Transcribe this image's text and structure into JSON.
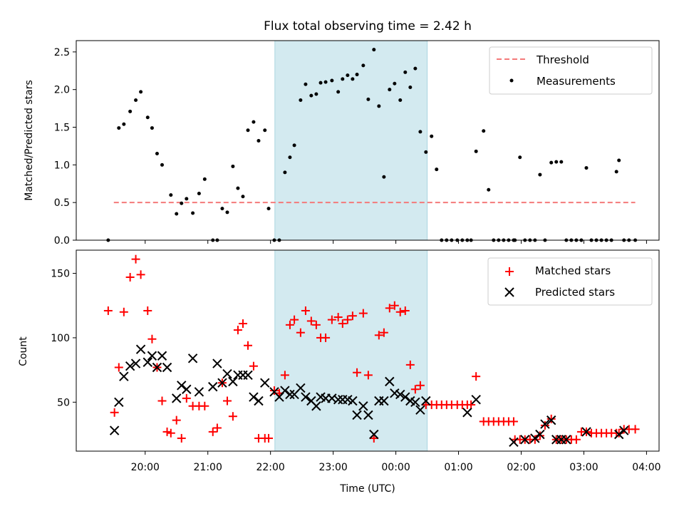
{
  "chart_data": [
    {
      "type": "scatter",
      "title": "Flux total observing time = 2.42 h",
      "xlabel": "",
      "ylabel": "Matched/Predicted stars",
      "xlim_hours": [
        18.9,
        28.2
      ],
      "ylim": [
        0,
        2.65
      ],
      "yticks": [
        0.0,
        0.5,
        1.0,
        1.5,
        2.0,
        2.5
      ],
      "ytick_labels": [
        "0.0",
        "0.5",
        "1.0",
        "1.5",
        "2.0",
        "2.5"
      ],
      "highlight_span_hours": [
        22.07,
        24.5
      ],
      "highlight_color": "#d3eaf0",
      "threshold": {
        "name": "Threshold",
        "value": 0.5,
        "x_range_hours": [
          19.5,
          27.82
        ],
        "color": "#f47a7a"
      },
      "legend": {
        "position": "upper right",
        "entries": [
          "Threshold",
          "Measurements"
        ]
      },
      "series": [
        {
          "name": "Measurements",
          "color": "#000000",
          "x": [
            19.41,
            19.58,
            19.66,
            19.76,
            19.85,
            19.93,
            20.04,
            20.11,
            20.19,
            20.27,
            20.41,
            20.5,
            20.58,
            20.66,
            20.76,
            20.86,
            20.95,
            21.08,
            21.15,
            21.23,
            21.31,
            21.4,
            21.48,
            21.56,
            21.64,
            21.73,
            21.81,
            21.91,
            21.97,
            22.06,
            22.14,
            22.23,
            22.31,
            22.38,
            22.48,
            22.56,
            22.65,
            22.73,
            22.8,
            22.88,
            22.98,
            23.08,
            23.15,
            23.23,
            23.31,
            23.38,
            23.48,
            23.56,
            23.65,
            23.73,
            23.81,
            23.9,
            23.98,
            24.07,
            24.15,
            24.23,
            24.31,
            24.39,
            24.48,
            24.57,
            24.65,
            24.73,
            24.81,
            24.89,
            24.98,
            25.06,
            25.14,
            25.2,
            25.28,
            25.4,
            25.48,
            25.56,
            25.64,
            25.72,
            25.8,
            25.88,
            25.9,
            25.98,
            26.06,
            26.14,
            26.22,
            26.3,
            26.38,
            26.48,
            26.56,
            26.64,
            26.72,
            26.8,
            26.88,
            26.96,
            27.04,
            27.12,
            27.2,
            27.28,
            27.36,
            27.44,
            27.52,
            27.56,
            27.64,
            27.72,
            27.82
          ],
          "y": [
            0.0,
            1.49,
            1.54,
            1.71,
            1.86,
            1.97,
            1.63,
            1.49,
            1.15,
            1.0,
            0.6,
            0.35,
            0.49,
            0.55,
            0.36,
            0.62,
            0.81,
            0.0,
            0.0,
            0.42,
            0.37,
            0.98,
            0.69,
            0.58,
            1.46,
            1.57,
            1.32,
            1.46,
            0.42,
            0.0,
            0.0,
            0.9,
            1.1,
            1.26,
            1.86,
            2.07,
            1.92,
            1.94,
            2.09,
            2.1,
            2.12,
            1.97,
            2.14,
            2.19,
            2.14,
            2.2,
            2.32,
            1.87,
            2.53,
            1.78,
            0.84,
            2.0,
            2.08,
            1.86,
            2.23,
            2.03,
            2.28,
            1.44,
            1.17,
            1.38,
            0.94,
            0.0,
            0.0,
            0.0,
            0.0,
            0.0,
            0.0,
            0.0,
            1.18,
            1.45,
            0.67,
            0.0,
            0.0,
            0.0,
            0.0,
            0.0,
            0.0,
            1.1,
            0.0,
            0.0,
            0.0,
            0.87,
            0.0,
            1.03,
            1.04,
            1.04,
            0.0,
            0.0,
            0.0,
            0.0,
            0.96,
            0.0,
            0.0,
            0.0,
            0.0,
            0.0,
            0.91,
            1.06,
            0.0,
            0.0,
            0.0
          ]
        }
      ]
    },
    {
      "type": "scatter",
      "title": "",
      "xlabel": "Time (UTC)",
      "ylabel": "Count",
      "xlim_hours": [
        18.9,
        28.2
      ],
      "ylim": [
        12,
        168
      ],
      "yticks": [
        50,
        100,
        150
      ],
      "ytick_labels": [
        "50",
        "100",
        "150"
      ],
      "xticks_hours": [
        20,
        21,
        22,
        23,
        24,
        25,
        26,
        27,
        28
      ],
      "xtick_labels": [
        "20:00",
        "21:00",
        "22:00",
        "23:00",
        "00:00",
        "01:00",
        "02:00",
        "03:00",
        "04:00"
      ],
      "highlight_span_hours": [
        22.07,
        24.5
      ],
      "highlight_color": "#d3eaf0",
      "legend": {
        "position": "upper right",
        "entries": [
          "Matched stars",
          "Predicted stars"
        ]
      },
      "series": [
        {
          "name": "Matched stars",
          "marker": "+",
          "color": "#ff0000",
          "x": [
            19.41,
            19.51,
            19.58,
            19.66,
            19.76,
            19.85,
            19.93,
            20.04,
            20.11,
            20.19,
            20.27,
            20.35,
            20.41,
            20.5,
            20.58,
            20.66,
            20.76,
            20.86,
            20.95,
            21.08,
            21.15,
            21.23,
            21.31,
            21.4,
            21.48,
            21.56,
            21.64,
            21.73,
            21.81,
            21.91,
            21.97,
            22.06,
            22.14,
            22.23,
            22.31,
            22.38,
            22.48,
            22.56,
            22.65,
            22.73,
            22.8,
            22.88,
            22.98,
            23.08,
            23.15,
            23.23,
            23.31,
            23.38,
            23.48,
            23.56,
            23.65,
            23.73,
            23.81,
            23.9,
            23.98,
            24.07,
            24.15,
            24.23,
            24.31,
            24.39,
            24.48,
            24.57,
            24.65,
            24.73,
            24.81,
            24.89,
            24.98,
            25.06,
            25.14,
            25.2,
            25.28,
            25.4,
            25.48,
            25.56,
            25.64,
            25.72,
            25.8,
            25.88,
            25.9,
            25.98,
            26.06,
            26.14,
            26.22,
            26.3,
            26.38,
            26.48,
            26.56,
            26.64,
            26.72,
            26.8,
            26.88,
            26.96,
            27.04,
            27.12,
            27.2,
            27.28,
            27.36,
            27.44,
            27.52,
            27.56,
            27.64,
            27.72,
            27.82
          ],
          "y": [
            121,
            42,
            77,
            120,
            147,
            161,
            149,
            121,
            99,
            77,
            51,
            27,
            26,
            36,
            22,
            53,
            47,
            47,
            47,
            27,
            30,
            65,
            51,
            39,
            106,
            111,
            94,
            78,
            22,
            22,
            22,
            59,
            57,
            71,
            110,
            114,
            104,
            121,
            113,
            110,
            100,
            100,
            114,
            116,
            111,
            114,
            117,
            73,
            119,
            71,
            22,
            102,
            104,
            123,
            125,
            120,
            121,
            79,
            60,
            63,
            48,
            48,
            48,
            48,
            48,
            48,
            48,
            48,
            48,
            48,
            70,
            35,
            35,
            35,
            35,
            35,
            35,
            35,
            21,
            21,
            21,
            21,
            21,
            24,
            32,
            37,
            21,
            21,
            21,
            21,
            21,
            27,
            27,
            26,
            26,
            26,
            26,
            26,
            26,
            26,
            29,
            29,
            29
          ]
        },
        {
          "name": "Predicted stars",
          "marker": "x",
          "color": "#000000",
          "x": [
            19.51,
            19.58,
            19.66,
            19.76,
            19.85,
            19.93,
            20.04,
            20.11,
            20.19,
            20.27,
            20.35,
            20.5,
            20.58,
            20.66,
            20.76,
            20.86,
            21.08,
            21.15,
            21.23,
            21.31,
            21.4,
            21.48,
            21.56,
            21.64,
            21.73,
            21.81,
            21.91,
            22.06,
            22.14,
            22.23,
            22.31,
            22.38,
            22.48,
            22.56,
            22.65,
            22.73,
            22.8,
            22.88,
            22.98,
            23.08,
            23.15,
            23.23,
            23.31,
            23.38,
            23.48,
            23.56,
            23.65,
            23.73,
            23.81,
            23.9,
            23.98,
            24.07,
            24.15,
            24.23,
            24.31,
            24.39,
            24.48,
            25.14,
            25.28,
            25.88,
            26.06,
            26.22,
            26.3,
            26.38,
            26.48,
            26.56,
            26.64,
            26.72,
            27.04,
            27.56,
            27.64
          ],
          "y": [
            28,
            50,
            70,
            78,
            80,
            91,
            81,
            86,
            77,
            86,
            77,
            53,
            63,
            60,
            84,
            58,
            62,
            80,
            65,
            72,
            66,
            71,
            71,
            71,
            54,
            51,
            65,
            58,
            54,
            59,
            56,
            56,
            61,
            54,
            51,
            47,
            54,
            53,
            53,
            52,
            52,
            52,
            51,
            40,
            47,
            40,
            25,
            51,
            51,
            66,
            57,
            56,
            54,
            51,
            50,
            44,
            51,
            42,
            52,
            19,
            21,
            22,
            25,
            33,
            36,
            21,
            21,
            21,
            27,
            25,
            28
          ]
        }
      ]
    }
  ]
}
